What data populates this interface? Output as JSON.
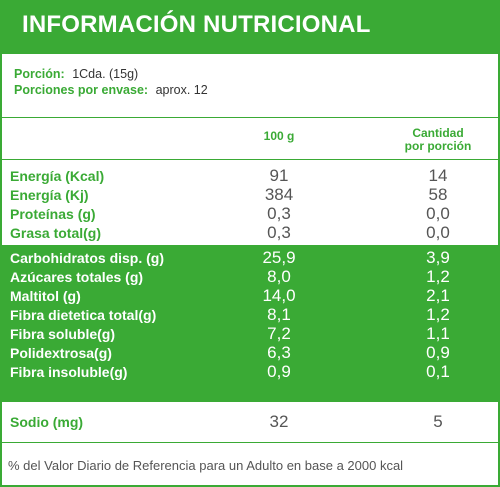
{
  "title": "INFORMACIÓN NUTRICIONAL",
  "serving": {
    "portion_label": "Porción:",
    "portion_value": "1Cda. (15g)",
    "servings_label": "Porciones por envase:",
    "servings_value": "aprox. 12"
  },
  "columns": {
    "per100": "100 g",
    "per_serving_line1": "Cantidad",
    "per_serving_line2": "por porción"
  },
  "rows_top": [
    {
      "name": "Energía (Kcal)",
      "per100": "91",
      "serving": "14"
    },
    {
      "name": "Energía (Kj)",
      "per100": "384",
      "serving": "58"
    },
    {
      "name": "Proteínas (g)",
      "per100": "0,3",
      "serving": "0,0"
    },
    {
      "name": "Grasa total(g)",
      "per100": "0,3",
      "serving": "0,0"
    }
  ],
  "rows_green": [
    {
      "name": "Carbohidratos disp. (g)",
      "per100": "25,9",
      "serving": "3,9"
    },
    {
      "name": "Azúcares totales (g)",
      "per100": "8,0",
      "serving": "1,2"
    },
    {
      "name": "Maltitol (g)",
      "per100": "14,0",
      "serving": "2,1"
    },
    {
      "name": "Fibra dietetica total(g)",
      "per100": "8,1",
      "serving": "1,2"
    },
    {
      "name": "Fibra soluble(g)",
      "per100": "7,2",
      "serving": "1,1"
    },
    {
      "name": "Polidextrosa(g)",
      "per100": "6,3",
      "serving": "0,9"
    },
    {
      "name": "Fibra insoluble(g)",
      "per100": "0,9",
      "serving": "0,1"
    }
  ],
  "sodium": {
    "name": "Sodio (mg)",
    "per100": "32",
    "serving": "5"
  },
  "footer": "% del Valor Diario de Referencia para un Adulto en base a 2000 kcal",
  "colors": {
    "brand_green": "#3aaa35",
    "text_gray": "#555555"
  }
}
